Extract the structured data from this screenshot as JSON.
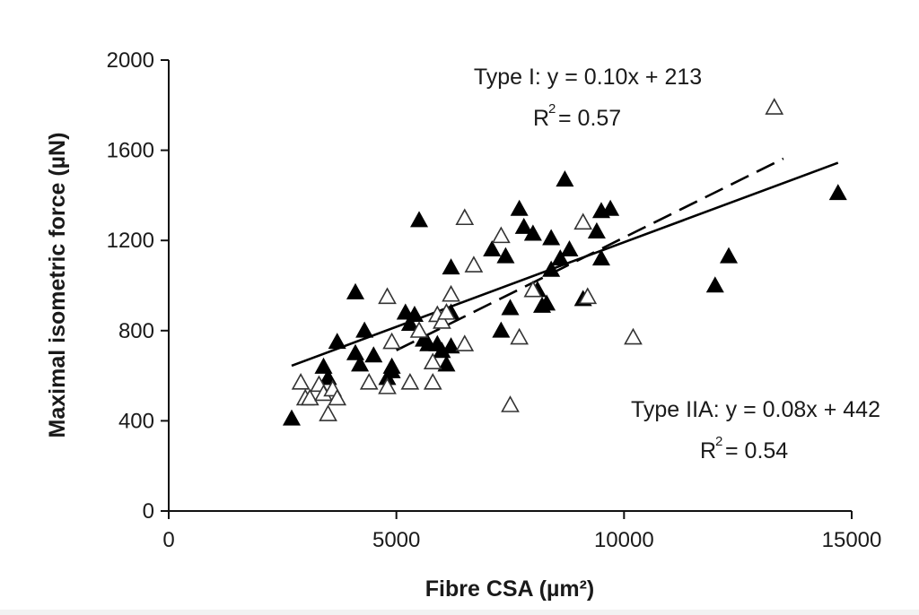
{
  "chart_data": {
    "type": "scatter",
    "title": "",
    "xlabel": "Fibre CSA (µm²)",
    "ylabel": "Maximal isometric force (µN)",
    "xlim": [
      0,
      15000
    ],
    "ylim": [
      0,
      2000
    ],
    "x_ticks": [
      0,
      5000,
      10000,
      15000
    ],
    "y_ticks": [
      0,
      400,
      800,
      1200,
      1600,
      2000
    ],
    "x_tick_labels": [
      "0",
      "5000",
      "10000",
      "15000"
    ],
    "y_tick_labels": [
      "0",
      "400",
      "800",
      "1200",
      "1600",
      "2000"
    ],
    "grid": false,
    "series": [
      {
        "name": "Type I",
        "marker": "filled-triangle",
        "points": [
          [
            2700,
            410
          ],
          [
            3400,
            640
          ],
          [
            3500,
            590
          ],
          [
            3700,
            750
          ],
          [
            4100,
            970
          ],
          [
            4100,
            700
          ],
          [
            4200,
            650
          ],
          [
            4300,
            800
          ],
          [
            4500,
            690
          ],
          [
            4800,
            590
          ],
          [
            4900,
            640
          ],
          [
            4900,
            620
          ],
          [
            5200,
            880
          ],
          [
            5300,
            830
          ],
          [
            5400,
            870
          ],
          [
            5500,
            1290
          ],
          [
            5600,
            760
          ],
          [
            5700,
            740
          ],
          [
            5900,
            740
          ],
          [
            6000,
            710
          ],
          [
            6100,
            650
          ],
          [
            6200,
            730
          ],
          [
            6200,
            880
          ],
          [
            6200,
            1080
          ],
          [
            7100,
            1160
          ],
          [
            7300,
            800
          ],
          [
            7400,
            1130
          ],
          [
            7500,
            900
          ],
          [
            7700,
            1340
          ],
          [
            7800,
            1260
          ],
          [
            8000,
            1230
          ],
          [
            8100,
            980
          ],
          [
            8200,
            910
          ],
          [
            8300,
            920
          ],
          [
            8400,
            1070
          ],
          [
            8400,
            1210
          ],
          [
            8600,
            1120
          ],
          [
            8700,
            1470
          ],
          [
            8800,
            1160
          ],
          [
            9100,
            940
          ],
          [
            9400,
            1240
          ],
          [
            9500,
            1120
          ],
          [
            9500,
            1330
          ],
          [
            9700,
            1340
          ],
          [
            12000,
            1000
          ],
          [
            12300,
            1130
          ],
          [
            14700,
            1410
          ]
        ]
      },
      {
        "name": "Type IIA",
        "marker": "open-triangle",
        "points": [
          [
            2900,
            570
          ],
          [
            3000,
            500
          ],
          [
            3100,
            500
          ],
          [
            3300,
            560
          ],
          [
            3400,
            520
          ],
          [
            3500,
            430
          ],
          [
            3600,
            540
          ],
          [
            3700,
            500
          ],
          [
            4400,
            570
          ],
          [
            4800,
            950
          ],
          [
            4800,
            550
          ],
          [
            4900,
            750
          ],
          [
            5300,
            570
          ],
          [
            5500,
            800
          ],
          [
            5800,
            660
          ],
          [
            5800,
            570
          ],
          [
            5900,
            870
          ],
          [
            6000,
            840
          ],
          [
            6100,
            880
          ],
          [
            6200,
            960
          ],
          [
            6500,
            1300
          ],
          [
            6500,
            740
          ],
          [
            6700,
            1090
          ],
          [
            7300,
            1220
          ],
          [
            7500,
            470
          ],
          [
            7700,
            770
          ],
          [
            8000,
            980
          ],
          [
            9100,
            1280
          ],
          [
            9200,
            950
          ],
          [
            10200,
            770
          ],
          [
            13300,
            1790
          ]
        ]
      }
    ],
    "fits": [
      {
        "name": "Type I",
        "style": "dashed",
        "slope": 0.1,
        "intercept": 213,
        "x_range": [
          5000,
          13500
        ],
        "equation": "Type I: y = 0.10x + 213",
        "r2_value": "= 0.57"
      },
      {
        "name": "Type IIA",
        "style": "solid",
        "slope": 0.075,
        "intercept": 442,
        "x_range": [
          2700,
          14700
        ],
        "equation": "Type IIA: y = 0.08x + 442",
        "r2_value": "= 0.54"
      }
    ],
    "r2_symbol": "R",
    "r2_exponent": "2"
  }
}
